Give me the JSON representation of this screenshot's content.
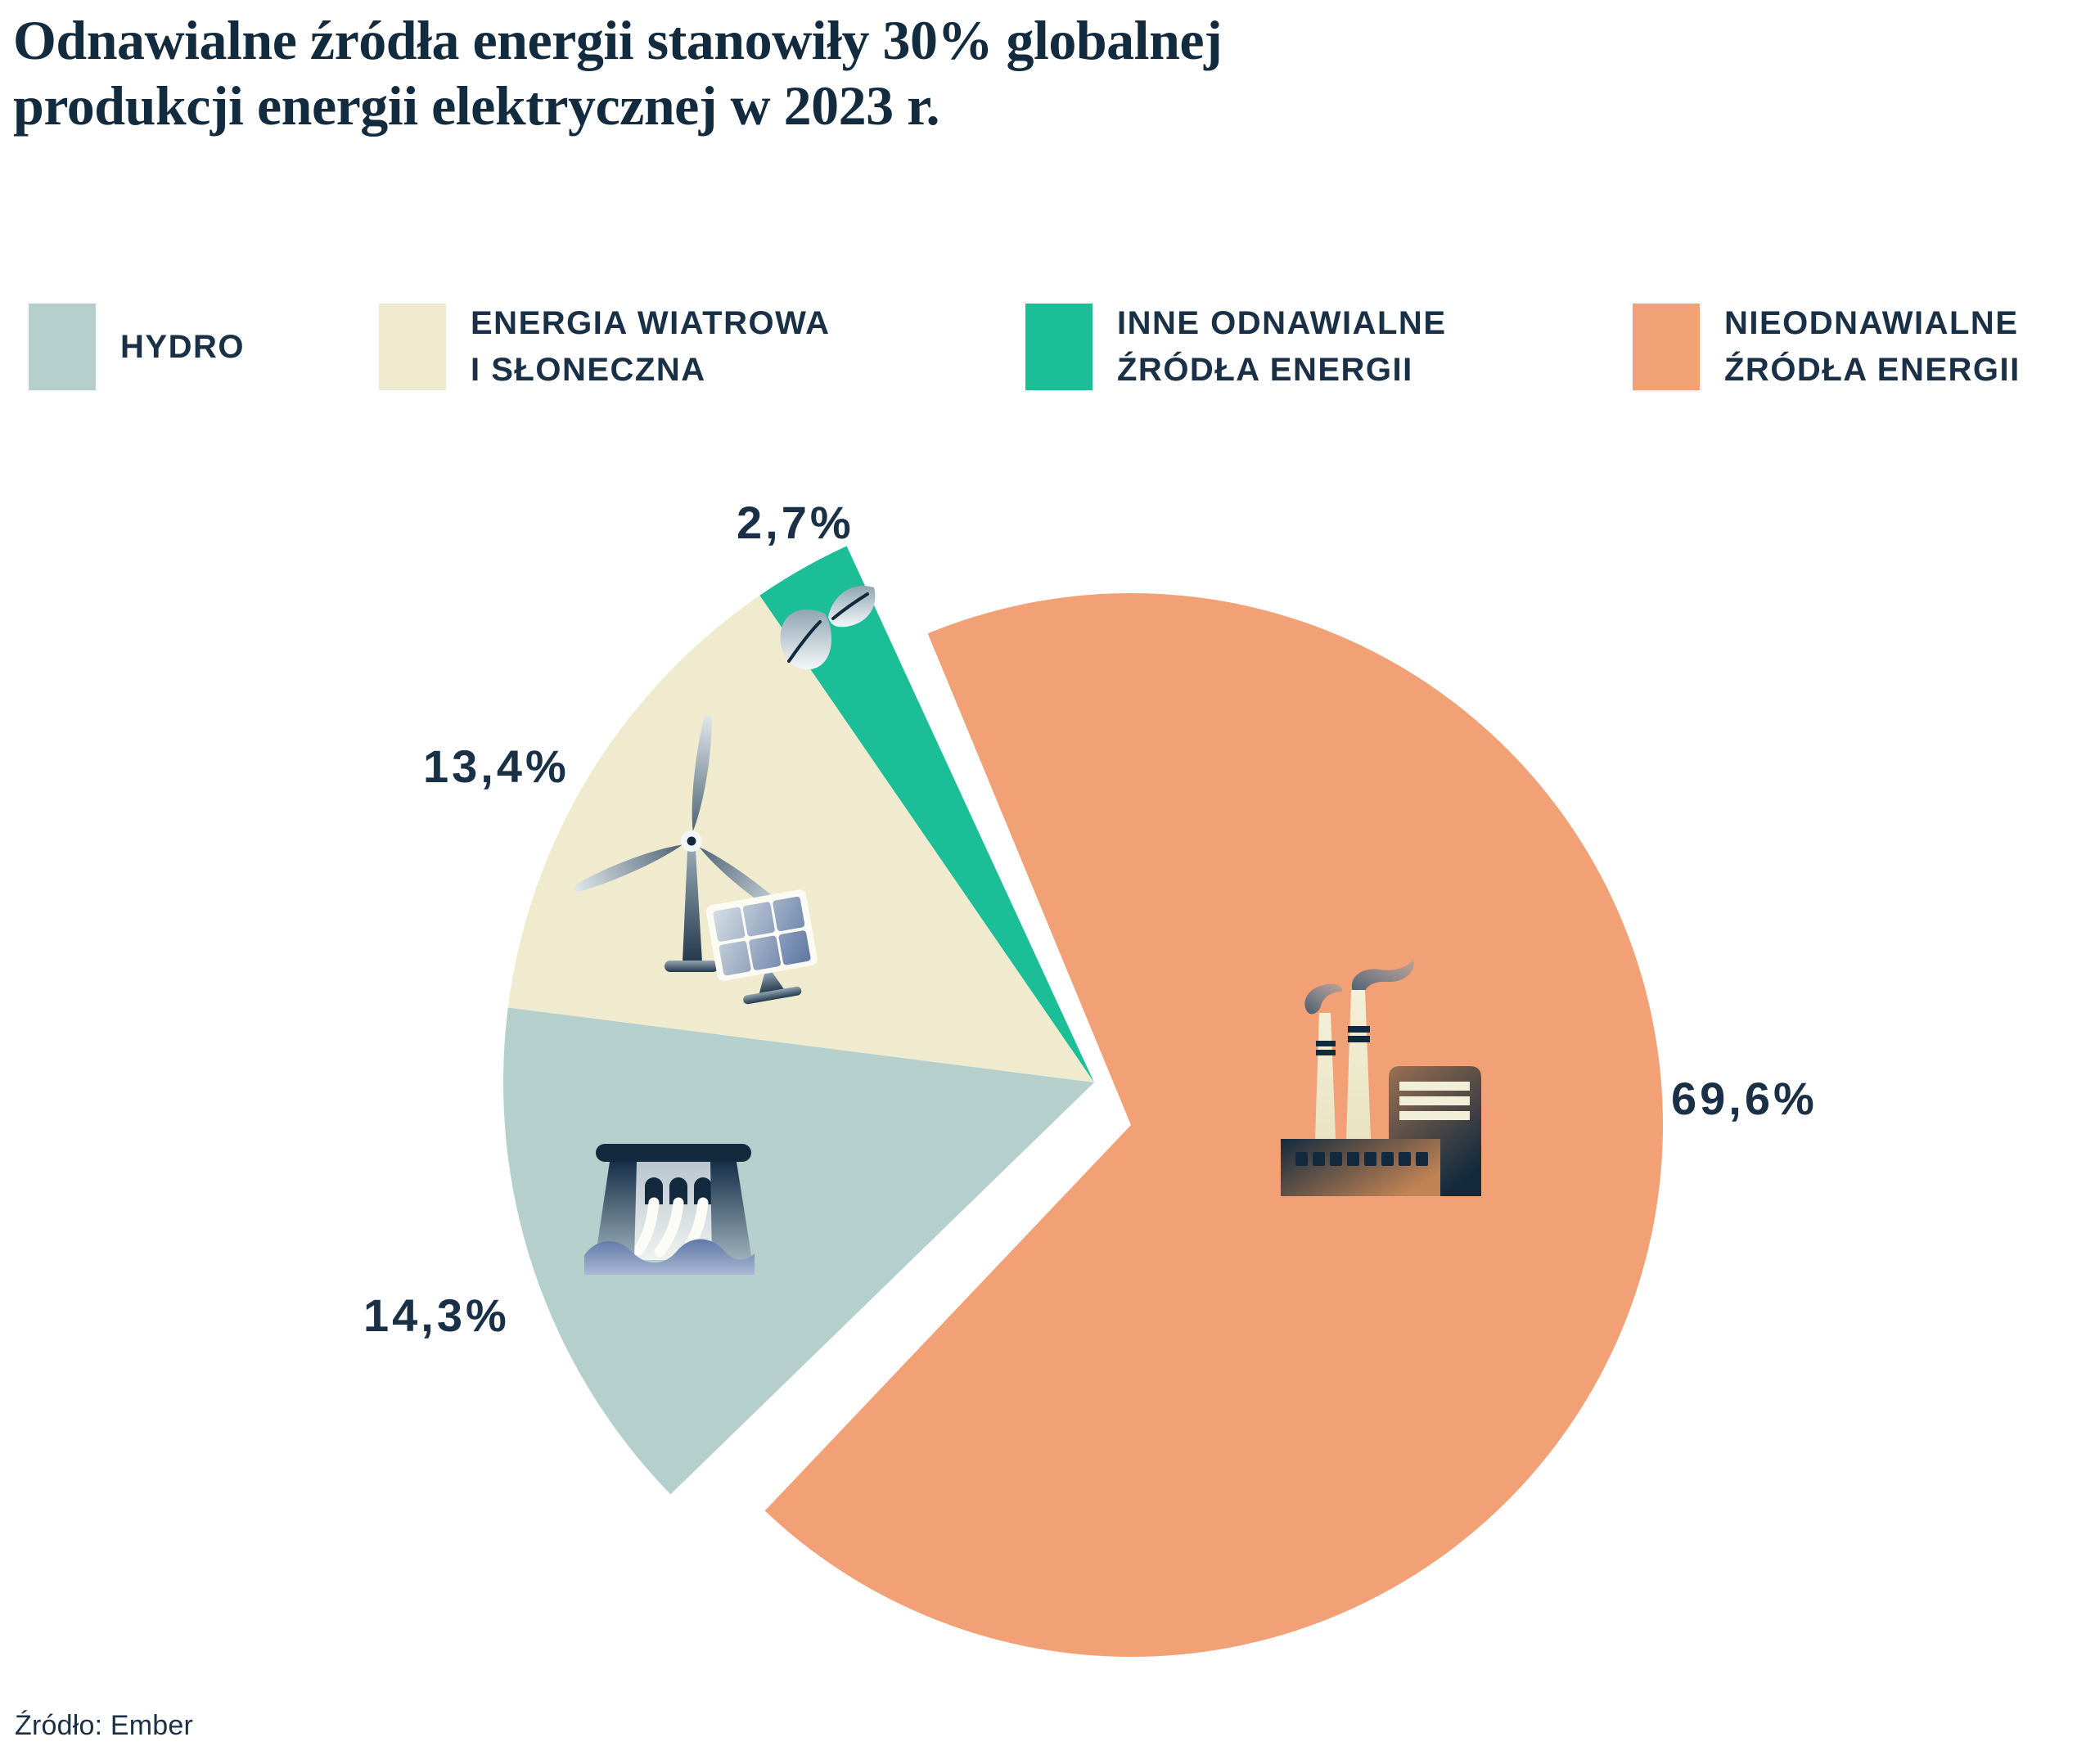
{
  "page": {
    "title": "Odnawialne źródła energii stanowiły 30% globalnej\nprodukcji energii elektrycznej w 2023 r.",
    "source": "Źródło: Ember"
  },
  "legend": {
    "items": [
      {
        "label": "HYDRO",
        "color": "#B5CFCC"
      },
      {
        "label": "ENERGIA WIATROWA\nI SŁONECZNA",
        "color": "#F0EBCE"
      },
      {
        "label": "INNE ODNAWIALNE\nŹRÓDŁA ENERGII",
        "color": "#1BBE96"
      },
      {
        "label": "NIEODNAWIALNE\nŹRÓDŁA ENERGII",
        "color": "#F2A176"
      }
    ]
  },
  "chart_data": {
    "type": "pie",
    "title": "Odnawialne źródła energii stanowiły 30% globalnej produkcji energii elektrycznej w 2023 r.",
    "unit": "%",
    "legend_position": "top",
    "source": "Źródło: Ember",
    "slices": [
      {
        "name": "Hydro",
        "value": 14.3,
        "label": "14,3%",
        "color": "#B5CFCC",
        "icon": "dam-icon",
        "exploded": false
      },
      {
        "name": "Energia wiatrowa i słoneczna",
        "value": 13.4,
        "label": "13,4%",
        "color": "#F0EBCE",
        "icon": "wind-turbine-and-solar-panel-icon",
        "exploded": false
      },
      {
        "name": "Inne odnawialne źródła energii",
        "value": 2.7,
        "label": "2,7%",
        "color": "#1BBE96",
        "icon": "leaf-icon",
        "exploded": false
      },
      {
        "name": "Nieodnawialne źródła energii",
        "value": 69.6,
        "label": "69,6%",
        "color": "#F2A176",
        "icon": "factory-icon",
        "exploded": true
      }
    ]
  }
}
